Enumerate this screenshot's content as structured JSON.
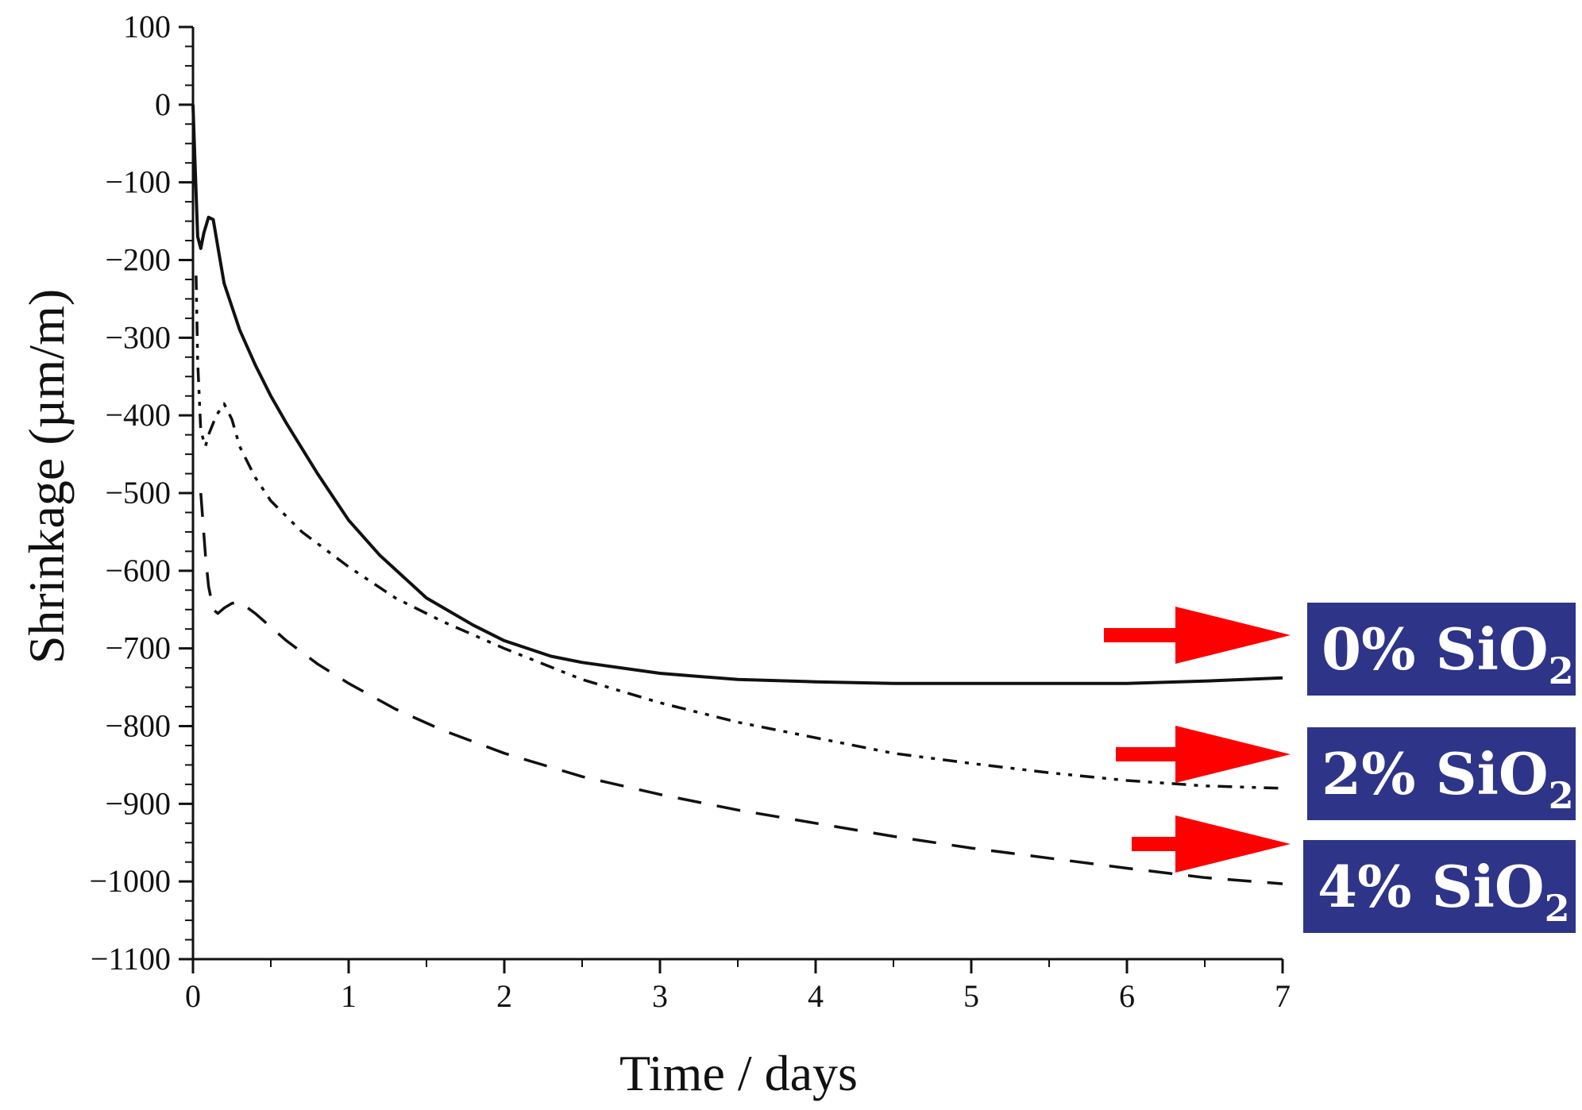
{
  "chart_data": {
    "type": "line",
    "title": "",
    "xlabel": "Time / days",
    "ylabel": "Shrinkage (µm/m)",
    "xlim": [
      0,
      7
    ],
    "ylim": [
      -1100,
      100
    ],
    "xticks": [
      0,
      1,
      2,
      3,
      4,
      5,
      6,
      7
    ],
    "xtick_labels": [
      "0",
      "1",
      "2",
      "3",
      "4",
      "5",
      "6",
      "7"
    ],
    "yticks": [
      100,
      0,
      -100,
      -200,
      -300,
      -400,
      -500,
      -600,
      -700,
      -800,
      -900,
      -1000,
      -1100
    ],
    "ytick_labels": [
      "100",
      "0",
      "−100",
      "−200",
      "−300",
      "−400",
      "−500",
      "−600",
      "−700",
      "−800",
      "−900",
      "−1000",
      "−1100"
    ],
    "grid": false,
    "series": [
      {
        "name": "0% SiO2",
        "style": "solid",
        "x": [
          0,
          0.01,
          0.03,
          0.05,
          0.07,
          0.1,
          0.13,
          0.17,
          0.2,
          0.3,
          0.4,
          0.5,
          0.6,
          0.8,
          1.0,
          1.2,
          1.5,
          1.8,
          2.0,
          2.3,
          2.5,
          3.0,
          3.5,
          4.0,
          4.5,
          5.0,
          5.5,
          6.0,
          6.5,
          7.0
        ],
        "y": [
          0,
          -60,
          -170,
          -185,
          -165,
          -145,
          -148,
          -195,
          -230,
          -290,
          -335,
          -375,
          -410,
          -475,
          -535,
          -580,
          -635,
          -670,
          -690,
          -710,
          -718,
          -732,
          -740,
          -743,
          -745,
          -745,
          -745,
          -745,
          -742,
          -738
        ]
      },
      {
        "name": "2% SiO2",
        "style": "dashdotdot",
        "x": [
          0.02,
          0.03,
          0.05,
          0.08,
          0.1,
          0.15,
          0.2,
          0.25,
          0.3,
          0.4,
          0.5,
          0.7,
          1.0,
          1.3,
          1.6,
          2.0,
          2.5,
          3.0,
          3.5,
          4.0,
          4.5,
          5.0,
          5.5,
          6.0,
          6.5,
          7.0
        ],
        "y": [
          -220,
          -330,
          -420,
          -440,
          -425,
          -400,
          -385,
          -405,
          -440,
          -480,
          -510,
          -550,
          -595,
          -635,
          -665,
          -700,
          -740,
          -770,
          -795,
          -815,
          -835,
          -848,
          -860,
          -870,
          -877,
          -880
        ]
      },
      {
        "name": "4% SiO2",
        "style": "dashed",
        "x": [
          0.05,
          0.08,
          0.1,
          0.13,
          0.16,
          0.2,
          0.25,
          0.3,
          0.4,
          0.6,
          0.8,
          1.0,
          1.3,
          1.6,
          2.0,
          2.5,
          3.0,
          3.5,
          4.0,
          4.5,
          5.0,
          5.5,
          6.0,
          6.5,
          7.0
        ],
        "y": [
          -500,
          -580,
          -620,
          -650,
          -655,
          -648,
          -642,
          -640,
          -655,
          -690,
          -720,
          -745,
          -778,
          -805,
          -835,
          -865,
          -888,
          -908,
          -925,
          -942,
          -957,
          -970,
          -983,
          -995,
          -1003
        ]
      }
    ],
    "annotations": [
      {
        "series": "0% SiO2",
        "label": "0% SiO",
        "subscript": "2",
        "box_color": "#2e3488",
        "arrow_color": "#ff0000"
      },
      {
        "series": "2% SiO2",
        "label": "2% SiO",
        "subscript": "2",
        "box_color": "#2e3488",
        "arrow_color": "#ff0000"
      },
      {
        "series": "4% SiO2",
        "label": "4% SiO",
        "subscript": "2",
        "box_color": "#2e3488",
        "arrow_color": "#ff0000"
      }
    ]
  }
}
